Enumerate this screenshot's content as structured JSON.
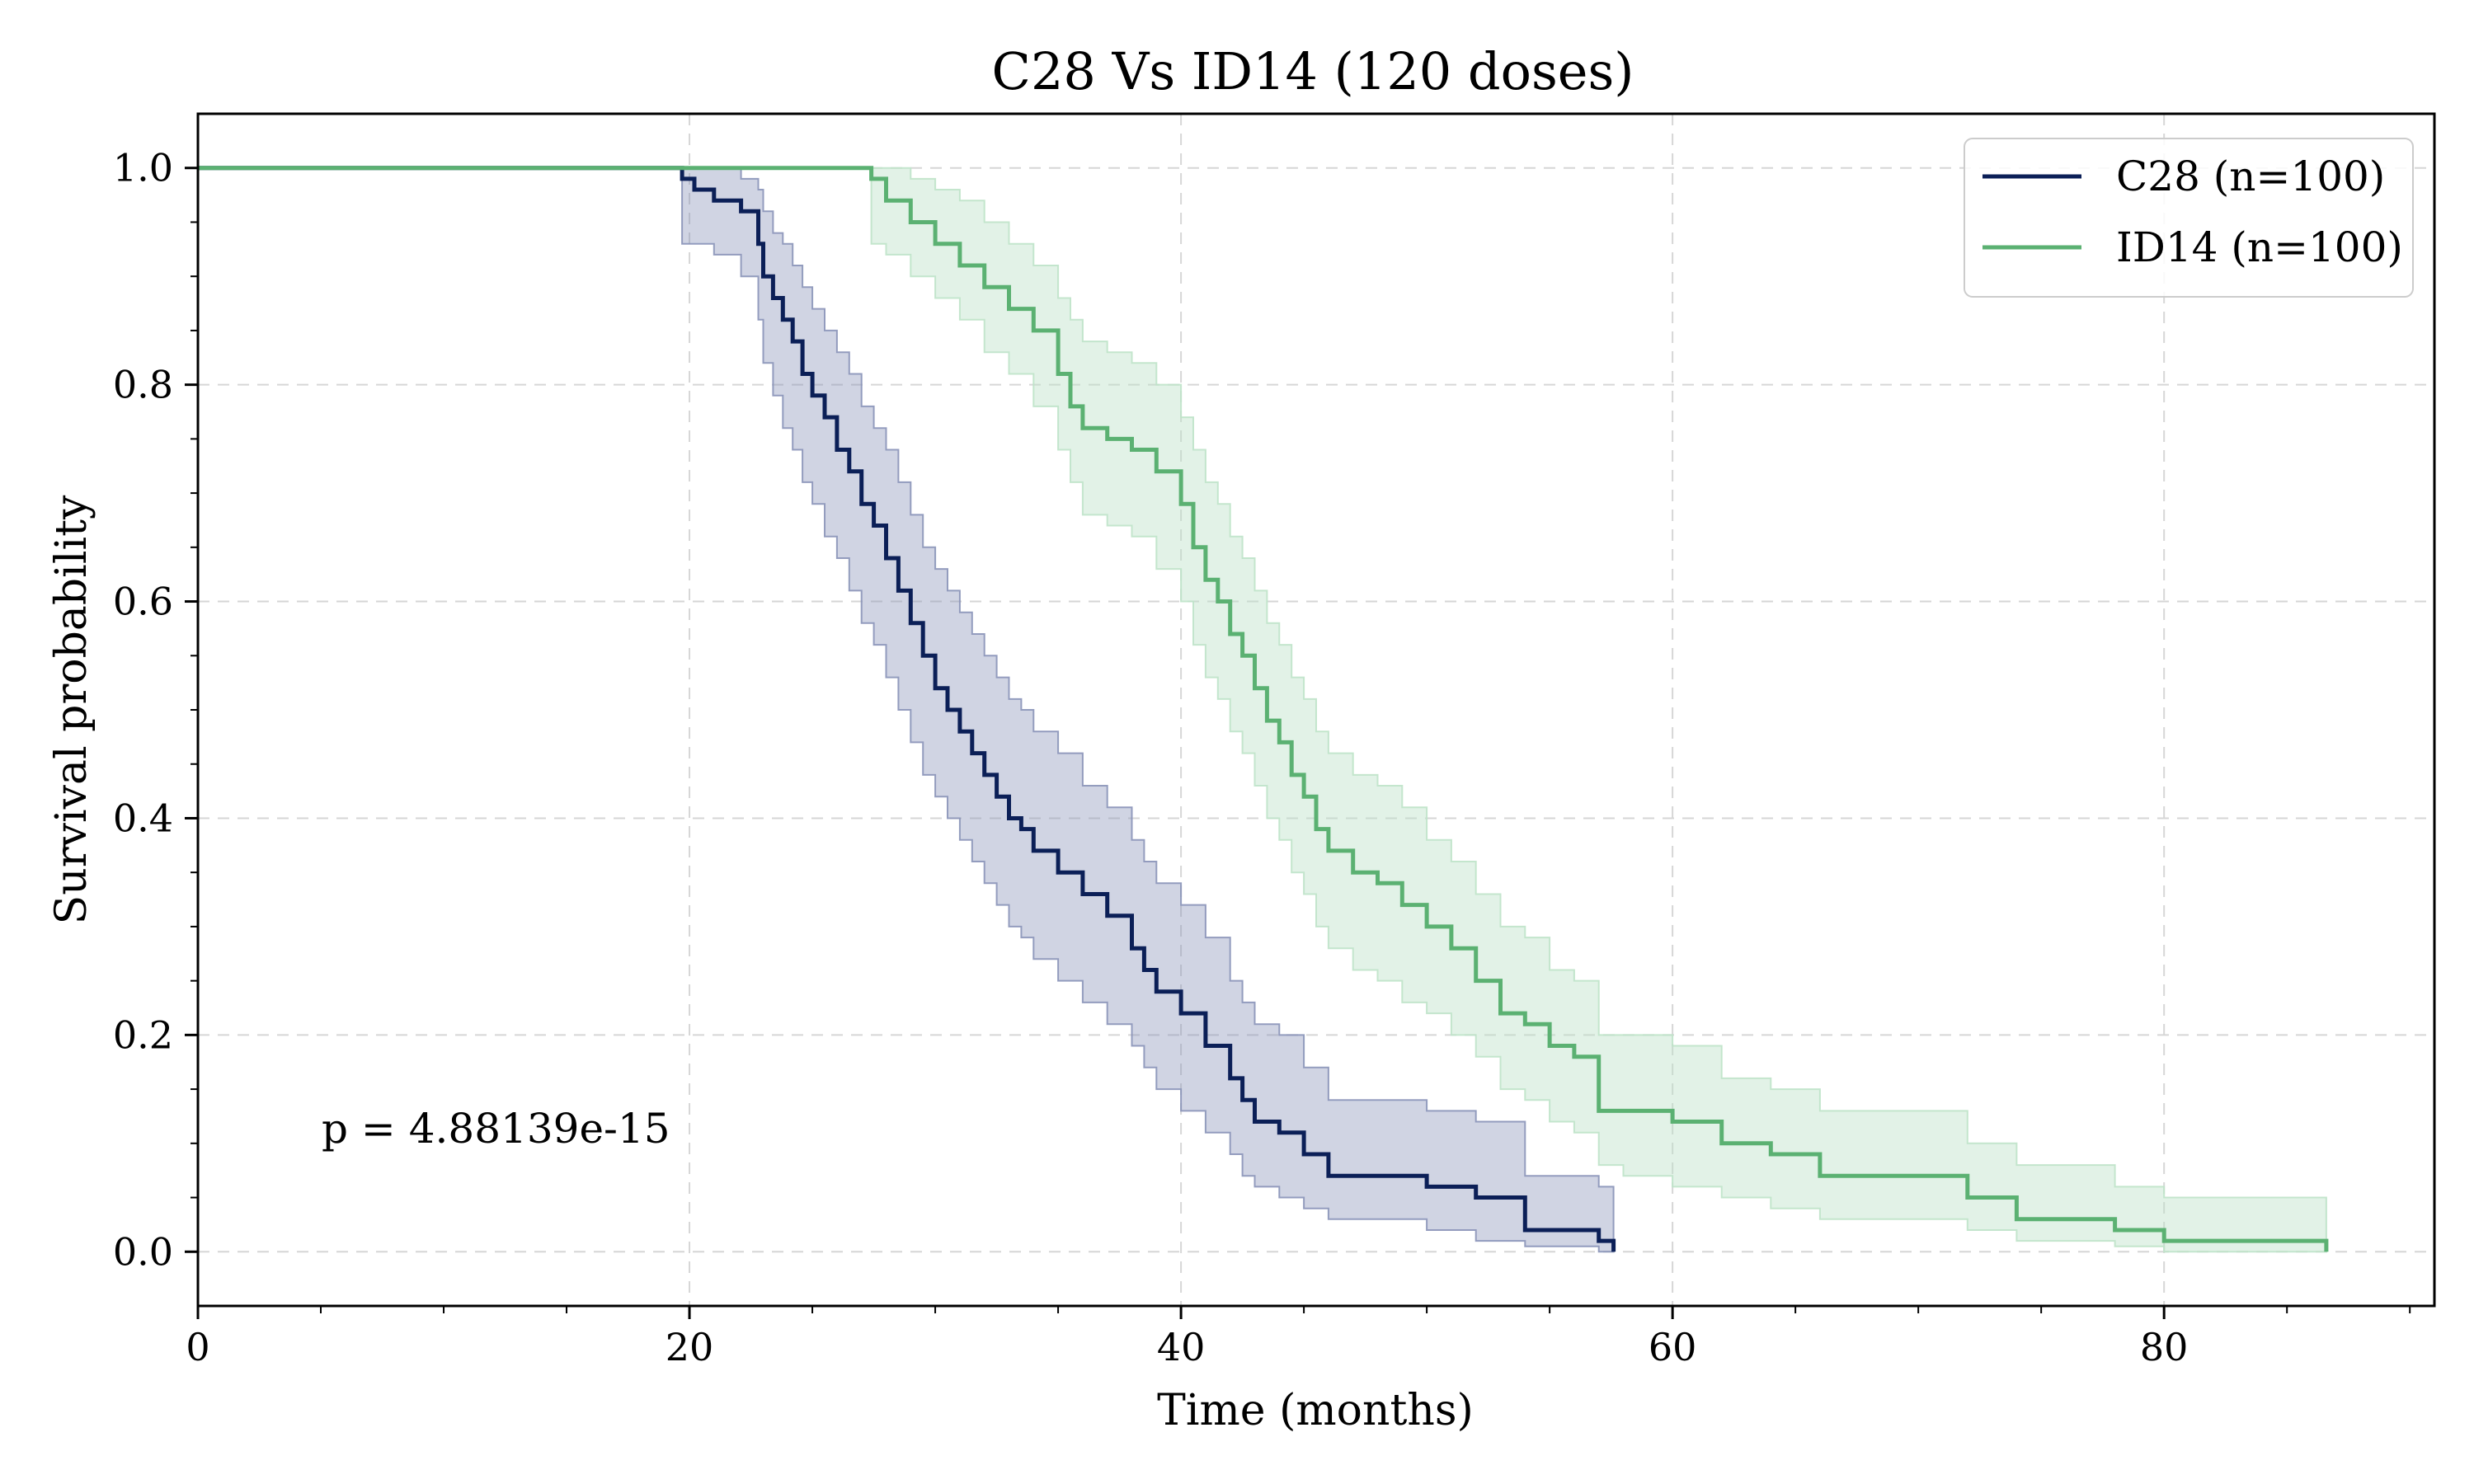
{
  "chart_data": {
    "type": "line",
    "subtype": "kaplan-meier",
    "title": "C28 Vs ID14 (120 doses)",
    "xlabel": "Time (months)",
    "ylabel": "Survival probability",
    "xlim": [
      0,
      91
    ],
    "ylim": [
      -0.05,
      1.05
    ],
    "xticks": [
      0,
      20,
      40,
      60,
      80
    ],
    "yticks": [
      0.0,
      0.2,
      0.4,
      0.6,
      0.8,
      1.0
    ],
    "xtick_labels": [
      "0",
      "20",
      "40",
      "60",
      "80"
    ],
    "ytick_labels": [
      "0.0",
      "0.2",
      "0.4",
      "0.6",
      "0.8",
      "1.0"
    ],
    "grid": true,
    "legend_position": "top-right",
    "annotation": "p = 4.88139e-15",
    "series": [
      {
        "name": "C28 (n=100)",
        "color": "#0b1f57",
        "band_color": "#8a94b8",
        "x": [
          0,
          19.7,
          20.2,
          21.0,
          22.1,
          22.8,
          23.0,
          23.4,
          23.8,
          24.2,
          24.6,
          25.0,
          25.5,
          26.0,
          26.5,
          27.0,
          27.5,
          28.0,
          28.5,
          29.0,
          29.5,
          30.0,
          30.5,
          31.0,
          31.5,
          32.0,
          32.5,
          33.0,
          33.5,
          34.0,
          35.0,
          36.0,
          37.0,
          38.0,
          38.5,
          39.0,
          40.0,
          41.0,
          42.0,
          42.5,
          43.0,
          44.0,
          45.0,
          46.0,
          48.0,
          50.0,
          52.0,
          54.0,
          57.0,
          57.6
        ],
        "y": [
          1.0,
          0.99,
          0.98,
          0.97,
          0.96,
          0.93,
          0.9,
          0.88,
          0.86,
          0.84,
          0.81,
          0.79,
          0.77,
          0.74,
          0.72,
          0.69,
          0.67,
          0.64,
          0.61,
          0.58,
          0.55,
          0.52,
          0.5,
          0.48,
          0.46,
          0.44,
          0.42,
          0.4,
          0.39,
          0.37,
          0.35,
          0.33,
          0.31,
          0.28,
          0.26,
          0.24,
          0.22,
          0.19,
          0.16,
          0.14,
          0.12,
          0.11,
          0.09,
          0.07,
          0.07,
          0.06,
          0.05,
          0.02,
          0.01,
          0.0
        ],
        "ci_lower": [
          1.0,
          0.93,
          0.93,
          0.92,
          0.9,
          0.86,
          0.82,
          0.79,
          0.76,
          0.74,
          0.71,
          0.69,
          0.66,
          0.64,
          0.61,
          0.58,
          0.56,
          0.53,
          0.5,
          0.47,
          0.44,
          0.42,
          0.4,
          0.38,
          0.36,
          0.34,
          0.32,
          0.3,
          0.29,
          0.27,
          0.25,
          0.23,
          0.21,
          0.19,
          0.17,
          0.15,
          0.13,
          0.11,
          0.09,
          0.07,
          0.06,
          0.05,
          0.04,
          0.03,
          0.03,
          0.02,
          0.01,
          0.005,
          0.0,
          0.0
        ],
        "ci_upper": [
          1.0,
          1.0,
          1.0,
          1.0,
          0.99,
          0.98,
          0.96,
          0.94,
          0.93,
          0.91,
          0.89,
          0.87,
          0.85,
          0.83,
          0.81,
          0.78,
          0.76,
          0.74,
          0.71,
          0.68,
          0.65,
          0.63,
          0.61,
          0.59,
          0.57,
          0.55,
          0.53,
          0.51,
          0.5,
          0.48,
          0.46,
          0.43,
          0.41,
          0.38,
          0.36,
          0.34,
          0.32,
          0.29,
          0.25,
          0.23,
          0.21,
          0.2,
          0.17,
          0.14,
          0.14,
          0.13,
          0.12,
          0.07,
          0.06,
          0.0
        ]
      },
      {
        "name": "ID14 (n=100)",
        "color": "#5bb172",
        "band_color": "#bfe3c9",
        "x": [
          0,
          27.4,
          28.0,
          29.0,
          30.0,
          31.0,
          32.0,
          33.0,
          34.0,
          35.0,
          35.5,
          36.0,
          37.0,
          38.0,
          39.0,
          40.0,
          40.5,
          41.0,
          41.5,
          42.0,
          42.5,
          43.0,
          43.5,
          44.0,
          44.5,
          45.0,
          45.5,
          46.0,
          47.0,
          48.0,
          49.0,
          50.0,
          51.0,
          52.0,
          53.0,
          54.0,
          55.0,
          56.0,
          57.0,
          58.0,
          60.0,
          62.0,
          64.0,
          66.0,
          70.0,
          72.0,
          74.0,
          78.0,
          80.0,
          86.6
        ],
        "y": [
          1.0,
          0.99,
          0.97,
          0.95,
          0.93,
          0.91,
          0.89,
          0.87,
          0.85,
          0.81,
          0.78,
          0.76,
          0.75,
          0.74,
          0.72,
          0.69,
          0.65,
          0.62,
          0.6,
          0.57,
          0.55,
          0.52,
          0.49,
          0.47,
          0.44,
          0.42,
          0.39,
          0.37,
          0.35,
          0.34,
          0.32,
          0.3,
          0.28,
          0.25,
          0.22,
          0.21,
          0.19,
          0.18,
          0.13,
          0.13,
          0.12,
          0.1,
          0.09,
          0.07,
          0.07,
          0.05,
          0.03,
          0.02,
          0.01,
          0.0
        ],
        "ci_lower": [
          1.0,
          0.93,
          0.92,
          0.9,
          0.88,
          0.86,
          0.83,
          0.81,
          0.78,
          0.74,
          0.71,
          0.68,
          0.67,
          0.66,
          0.63,
          0.6,
          0.56,
          0.53,
          0.51,
          0.48,
          0.46,
          0.43,
          0.4,
          0.38,
          0.35,
          0.33,
          0.3,
          0.28,
          0.26,
          0.25,
          0.23,
          0.22,
          0.2,
          0.18,
          0.15,
          0.14,
          0.12,
          0.11,
          0.08,
          0.07,
          0.06,
          0.05,
          0.04,
          0.03,
          0.03,
          0.02,
          0.01,
          0.005,
          0.0,
          0.0
        ],
        "ci_upper": [
          1.0,
          1.0,
          1.0,
          0.99,
          0.98,
          0.97,
          0.95,
          0.93,
          0.91,
          0.88,
          0.86,
          0.84,
          0.83,
          0.82,
          0.8,
          0.77,
          0.74,
          0.71,
          0.69,
          0.66,
          0.64,
          0.61,
          0.58,
          0.56,
          0.53,
          0.51,
          0.48,
          0.46,
          0.44,
          0.43,
          0.41,
          0.38,
          0.36,
          0.33,
          0.3,
          0.29,
          0.26,
          0.25,
          0.2,
          0.2,
          0.19,
          0.16,
          0.15,
          0.13,
          0.13,
          0.1,
          0.08,
          0.06,
          0.05,
          0.0
        ]
      }
    ]
  }
}
